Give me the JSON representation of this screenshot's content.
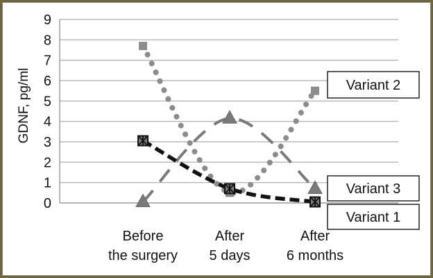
{
  "chart_data": {
    "type": "line",
    "categories": [
      [
        "Before",
        "the surgery"
      ],
      [
        "After",
        "5 days"
      ],
      [
        "After",
        "6 months"
      ]
    ],
    "ylabel": "GDNF, pg/ml",
    "ylim": [
      0,
      9
    ],
    "yticks": [
      0,
      1,
      2,
      3,
      4,
      5,
      6,
      7,
      8,
      9
    ],
    "grid": true,
    "series": [
      {
        "name": "Variant 1",
        "values": [
          3.05,
          0.7,
          0.05
        ],
        "color": "#111111",
        "marker": "x-square",
        "style": "dashed-bold"
      },
      {
        "name": "Variant 2",
        "values": [
          7.7,
          0.5,
          5.5
        ],
        "color": "#8c8c8c",
        "marker": "square",
        "style": "dotted"
      },
      {
        "name": "Variant 3",
        "values": [
          0.05,
          4.15,
          0.7
        ],
        "color": "#7a7a7a",
        "marker": "triangle",
        "style": "long-dash"
      }
    ]
  }
}
